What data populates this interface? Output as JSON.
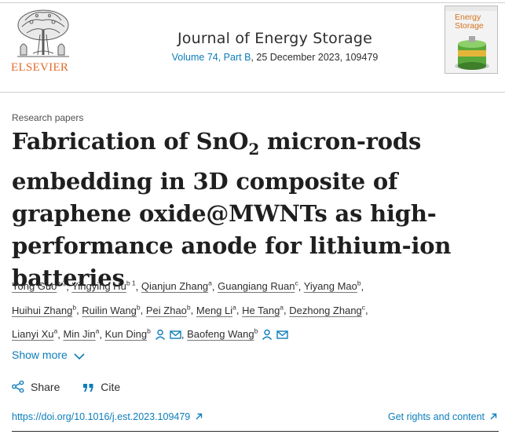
{
  "publisher": {
    "name": "ELSEVIER"
  },
  "journal": {
    "title": "Journal of Energy Storage",
    "volume": "Volume 74, Part B",
    "issue_date": ", 25 December 2023, 109479",
    "cover_title_line1": "Energy",
    "cover_title_line2": "Storage"
  },
  "article": {
    "section": "Research papers",
    "title_part1": "Fabrication of SnO",
    "title_subscript": "2",
    "title_part2": " micron-rods embedding in 3D composite of graphene oxide@MWNTs as high-performance anode for lithium-ion batteries"
  },
  "authors": [
    {
      "name": "Yong Guo",
      "aff": "a 1"
    },
    {
      "name": "Yingying Hu",
      "aff": "b 1"
    },
    {
      "name": "Qianjun Zhang",
      "aff": "a"
    },
    {
      "name": "Guangiang Ruan",
      "aff": "c"
    },
    {
      "name": "Yiyang Mao",
      "aff": "b"
    },
    {
      "name": "Huihui Zhang",
      "aff": "b"
    },
    {
      "name": "Ruilin Wang",
      "aff": "b"
    },
    {
      "name": "Pei Zhao",
      "aff": "b"
    },
    {
      "name": "Meng Li",
      "aff": "a"
    },
    {
      "name": "He Tang",
      "aff": "a"
    },
    {
      "name": "Dezhong Zhang",
      "aff": "c"
    },
    {
      "name": "Lianyi Xu",
      "aff": "a"
    },
    {
      "name": "Min Jin",
      "aff": "a"
    },
    {
      "name": "Kun Ding",
      "aff": "b"
    },
    {
      "name": "Baofeng Wang",
      "aff": "b"
    }
  ],
  "controls": {
    "show_more": "Show more",
    "share": "Share",
    "cite": "Cite"
  },
  "links": {
    "doi": "https://doi.org/10.1016/j.est.2023.109479",
    "rights": "Get rights and content"
  },
  "colors": {
    "link": "#0c7dbb",
    "publisher_orange": "#e4692a",
    "text": "#1f1f1f"
  },
  "icons": [
    "person-icon",
    "mail-icon",
    "chevron-down-icon",
    "share-icon",
    "quote-icon",
    "external-link-icon"
  ]
}
